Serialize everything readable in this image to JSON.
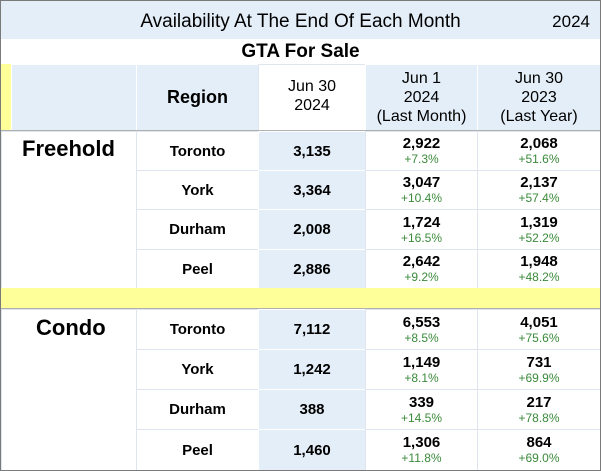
{
  "title": "Availability At The End Of Each Month",
  "year": "2024",
  "subtitle": "GTA For Sale",
  "headers": {
    "region": "Region",
    "col1": [
      "Jun 30",
      "2024"
    ],
    "col2": [
      "Jun 1",
      "2024",
      "(Last Month)"
    ],
    "col3": [
      "Jun 30",
      "2023",
      "(Last Year)"
    ]
  },
  "sections": [
    {
      "label": "Freehold",
      "rows": [
        {
          "region": "Toronto",
          "current": "3,135",
          "last_month": "2,922",
          "last_month_pct": "+7.3%",
          "last_year": "2,068",
          "last_year_pct": "+51.6%"
        },
        {
          "region": "York",
          "current": "3,364",
          "last_month": "3,047",
          "last_month_pct": "+10.4%",
          "last_year": "2,137",
          "last_year_pct": "+57.4%"
        },
        {
          "region": "Durham",
          "current": "2,008",
          "last_month": "1,724",
          "last_month_pct": "+16.5%",
          "last_year": "1,319",
          "last_year_pct": "+52.2%"
        },
        {
          "region": "Peel",
          "current": "2,886",
          "last_month": "2,642",
          "last_month_pct": "+9.2%",
          "last_year": "1,948",
          "last_year_pct": "+48.2%"
        }
      ]
    },
    {
      "label": "Condo",
      "rows": [
        {
          "region": "Toronto",
          "current": "7,112",
          "last_month": "6,553",
          "last_month_pct": "+8.5%",
          "last_year": "4,051",
          "last_year_pct": "+75.6%"
        },
        {
          "region": "York",
          "current": "1,242",
          "last_month": "1,149",
          "last_month_pct": "+8.1%",
          "last_year": "731",
          "last_year_pct": "+69.9%"
        },
        {
          "region": "Durham",
          "current": "388",
          "last_month": "339",
          "last_month_pct": "+14.5%",
          "last_year": "217",
          "last_year_pct": "+78.8%"
        },
        {
          "region": "Peel",
          "current": "1,460",
          "last_month": "1,306",
          "last_month_pct": "+11.8%",
          "last_year": "864",
          "last_year_pct": "+69.0%"
        }
      ]
    }
  ],
  "colors": {
    "light_blue": "#e4eef8",
    "yellow": "#ffff99",
    "pct_green": "#3a8a3a"
  }
}
